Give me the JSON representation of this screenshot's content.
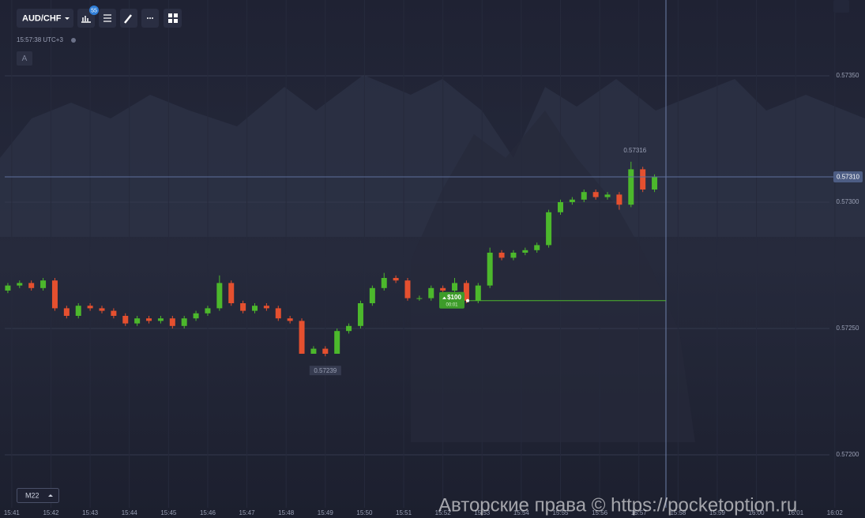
{
  "toolbar": {
    "pair": "AUD/CHF",
    "badge": 55,
    "clock": "15:57:38 UTC+3",
    "drawing_mode": "A",
    "timeframe": "M22"
  },
  "watermark": "Авторские права © https://pocketoption.ru",
  "chart_data": {
    "type": "candlestick",
    "x": [
      940.9,
      941.2,
      941.5,
      941.8,
      942.1,
      942.4,
      942.7,
      943,
      943.3,
      943.6,
      943.9,
      944.2,
      944.5,
      944.8,
      945.1,
      945.4,
      945.7,
      946,
      946.3,
      946.6,
      946.9,
      947.2,
      947.5,
      947.8,
      948.1,
      948.4,
      948.7,
      949,
      949.3,
      949.6,
      949.9,
      950.2,
      950.5,
      950.8,
      951.1,
      951.4,
      951.7,
      952,
      952.3,
      952.6,
      952.9,
      953.2,
      953.5,
      953.8,
      954.1,
      954.4,
      954.7,
      955,
      955.3,
      955.6,
      955.9,
      956.2,
      956.5,
      956.8,
      957.1,
      957.4
    ],
    "open": [
      0.57265,
      0.57267,
      0.57268,
      0.57266,
      0.57269,
      0.57258,
      0.57255,
      0.57259,
      0.57258,
      0.57257,
      0.57255,
      0.57252,
      0.57254,
      0.57253,
      0.57254,
      0.57251,
      0.57254,
      0.57256,
      0.57258,
      0.57268,
      0.5726,
      0.57257,
      0.57259,
      0.57258,
      0.57254,
      0.57253,
      0.5724,
      0.57242,
      0.5724,
      0.57249,
      0.57251,
      0.5726,
      0.57266,
      0.5727,
      0.57269,
      0.57262,
      0.57262,
      0.57266,
      0.57265,
      0.57268,
      0.57261,
      0.57267,
      0.5728,
      0.57278,
      0.5728,
      0.57281,
      0.57283,
      0.57296,
      0.573,
      0.57301,
      0.57304,
      0.57302,
      0.57303,
      0.57299,
      0.57313,
      0.57305
    ],
    "high": [
      0.57268,
      0.57269,
      0.57269,
      0.5727,
      0.5727,
      0.57259,
      0.5726,
      0.5726,
      0.57259,
      0.57258,
      0.57256,
      0.57255,
      0.57255,
      0.57255,
      0.57255,
      0.57255,
      0.57257,
      0.57259,
      0.57271,
      0.57269,
      0.57261,
      0.5726,
      0.5726,
      0.57259,
      0.57255,
      0.57254,
      0.57243,
      0.57243,
      0.5725,
      0.57252,
      0.57261,
      0.57267,
      0.57272,
      0.57271,
      0.5727,
      0.57263,
      0.57267,
      0.57267,
      0.5727,
      0.57269,
      0.57268,
      0.57282,
      0.57281,
      0.57281,
      0.57282,
      0.57284,
      0.57297,
      0.57301,
      0.57302,
      0.57305,
      0.57305,
      0.57304,
      0.57304,
      0.57316,
      0.57314,
      0.57311
    ],
    "low": [
      0.57264,
      0.57266,
      0.57265,
      0.57265,
      0.57257,
      0.57254,
      0.57254,
      0.57257,
      0.57256,
      0.57254,
      0.57251,
      0.57251,
      0.57252,
      0.57252,
      0.5725,
      0.5725,
      0.57253,
      0.57255,
      0.57257,
      0.57259,
      0.57256,
      0.57256,
      0.57257,
      0.57253,
      0.57252,
      0.5724,
      0.5724,
      0.57239,
      0.5724,
      0.57248,
      0.5725,
      0.57259,
      0.57265,
      0.57268,
      0.57261,
      0.57261,
      0.57261,
      0.57264,
      0.57264,
      0.5726,
      0.5726,
      0.57266,
      0.57277,
      0.57277,
      0.57279,
      0.5728,
      0.57282,
      0.57295,
      0.57299,
      0.573,
      0.57301,
      0.57301,
      0.57297,
      0.57298,
      0.57304,
      0.57304
    ],
    "close": [
      0.57267,
      0.57268,
      0.57266,
      0.57269,
      0.57258,
      0.57255,
      0.57259,
      0.57258,
      0.57257,
      0.57255,
      0.57252,
      0.57254,
      0.57253,
      0.57254,
      0.57251,
      0.57254,
      0.57256,
      0.57258,
      0.57268,
      0.5726,
      0.57257,
      0.57259,
      0.57258,
      0.57254,
      0.57253,
      0.5724,
      0.57242,
      0.5724,
      0.57249,
      0.57251,
      0.5726,
      0.57266,
      0.5727,
      0.57269,
      0.57262,
      0.57262,
      0.57266,
      0.57265,
      0.57268,
      0.57261,
      0.57267,
      0.5728,
      0.57278,
      0.5728,
      0.57281,
      0.57283,
      0.57296,
      0.573,
      0.57301,
      0.57304,
      0.57302,
      0.57303,
      0.57299,
      0.57313,
      0.57305,
      0.5731
    ],
    "up_color": "#4cb82c",
    "down_color": "#e5502f",
    "xlim": [
      940.7,
      962.77
    ],
    "xticks": [
      {
        "value": 941,
        "label": "15:41"
      },
      {
        "value": 942,
        "label": "15:42"
      },
      {
        "value": 943,
        "label": "15:43"
      },
      {
        "value": 944,
        "label": "15:44"
      },
      {
        "value": 945,
        "label": "15:45"
      },
      {
        "value": 946,
        "label": "15:46"
      },
      {
        "value": 947,
        "label": "15:47"
      },
      {
        "value": 948,
        "label": "15:48"
      },
      {
        "value": 949,
        "label": "15:49"
      },
      {
        "value": 950,
        "label": "15:50"
      },
      {
        "value": 951,
        "label": "15:51"
      },
      {
        "value": 952,
        "label": "15:52"
      },
      {
        "value": 953,
        "label": "15:53"
      },
      {
        "value": 954,
        "label": "15:54"
      },
      {
        "value": 955,
        "label": "15:55"
      },
      {
        "value": 956,
        "label": "15:56"
      },
      {
        "value": 957,
        "label": "15:57"
      },
      {
        "value": 958,
        "label": "15:58"
      },
      {
        "value": 959,
        "label": "15:59"
      },
      {
        "value": 960,
        "label": "16:00"
      },
      {
        "value": 961,
        "label": "16:01"
      },
      {
        "value": 962,
        "label": "16:02"
      }
    ],
    "ylim": [
      0.57175,
      0.5738
    ],
    "yticks": [
      {
        "value": 0.5735,
        "label": "0.57350"
      },
      {
        "value": 0.573,
        "label": "0.57300"
      },
      {
        "value": 0.5725,
        "label": "0.57250"
      },
      {
        "value": 0.572,
        "label": "0.57200"
      }
    ],
    "grid": true,
    "current_price": {
      "value": 0.5731,
      "label": "0.57310"
    },
    "high_label": 0.57316,
    "low_label": 0.57239,
    "trade": {
      "amount": "$100",
      "timer": "00:01",
      "price": 0.57261
    }
  }
}
